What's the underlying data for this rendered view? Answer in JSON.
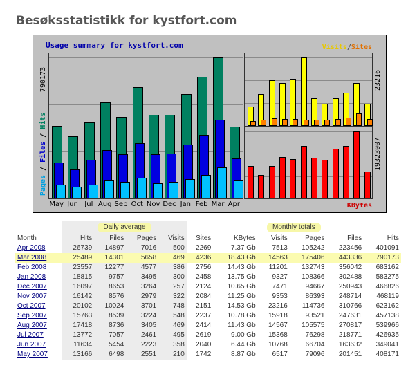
{
  "page": {
    "title": "Besøksstatistikk for kystfort.com"
  },
  "chart": {
    "title": "Usage summary for kystfort.com",
    "legend_visits": "Visits",
    "legend_separator": "/",
    "legend_sites": "Sites",
    "legend_kbytes": "KBytes",
    "left_max_label": "790173",
    "left_axis_labels": {
      "pages": "Pages",
      "files": "Files",
      "hits": "Hits",
      "sep": " / "
    },
    "right_top_max_label": "23216",
    "right_bottom_max_label": "19323007",
    "colors": {
      "hits": "#008060",
      "files": "#0000e0",
      "pages": "#00c0ff",
      "visits": "#ffff00",
      "sites": "#ff8000",
      "kbytes": "#ff0000"
    }
  },
  "chart_data": {
    "type": "bar",
    "categories": [
      "May",
      "Jun",
      "Jul",
      "Aug",
      "Sep",
      "Oct",
      "Nov",
      "Dec",
      "Jan",
      "Feb",
      "Mar",
      "Apr"
    ],
    "series": [
      {
        "name": "Hits",
        "values": [
          408171,
          349041,
          426935,
          539966,
          457138,
          623162,
          468119,
          466826,
          583275,
          683162,
          790173,
          401091
        ]
      },
      {
        "name": "Files",
        "values": [
          201451,
          163632,
          218771,
          270817,
          247631,
          310766,
          248714,
          250943,
          302488,
          356042,
          443336,
          223456
        ]
      },
      {
        "name": "Pages",
        "values": [
          79096,
          66704,
          76298,
          105575,
          93521,
          114736,
          86393,
          94667,
          108366,
          132743,
          175406,
          105242
        ]
      },
      {
        "name": "Visits",
        "values": [
          6517,
          10768,
          15368,
          14567,
          15918,
          23216,
          9353,
          7471,
          9327,
          11201,
          14563,
          7513
        ]
      },
      {
        "name": "Sites",
        "values": [
          1742,
          2040,
          2619,
          2414,
          2237,
          2151,
          2084,
          2124,
          2458,
          2756,
          4236,
          2269
        ]
      },
      {
        "name": "KBytes",
        "values": [
          9300870,
          6752829,
          9437184,
          11985223,
          11303649,
          15236382,
          11796480,
          11168481,
          14417920,
          15131000,
          19323007,
          7727474
        ]
      }
    ]
  },
  "table": {
    "group_daily": "Daily average",
    "group_monthly": "Monthly totals",
    "headers": [
      "Month",
      "Hits",
      "Files",
      "Pages",
      "Visits",
      "Sites",
      "KBytes",
      "Visits",
      "Pages",
      "Files",
      "Hits"
    ],
    "rows": [
      [
        "Apr 2008",
        "26739",
        "14897",
        "7016",
        "500",
        "2269",
        "7.37 Gb",
        "7513",
        "105242",
        "223456",
        "401091"
      ],
      [
        "Mar 2008",
        "25489",
        "14301",
        "5658",
        "469",
        "4236",
        "18.43 Gb",
        "14563",
        "175406",
        "443336",
        "790173"
      ],
      [
        "Feb 2008",
        "23557",
        "12277",
        "4577",
        "386",
        "2756",
        "14.43 Gb",
        "11201",
        "132743",
        "356042",
        "683162"
      ],
      [
        "Jan 2008",
        "18815",
        "9757",
        "3495",
        "300",
        "2458",
        "13.75 Gb",
        "9327",
        "108366",
        "302488",
        "583275"
      ],
      [
        "Dec 2007",
        "16097",
        "8653",
        "3264",
        "257",
        "2124",
        "10.65 Gb",
        "7471",
        "94667",
        "250943",
        "466826"
      ],
      [
        "Nov 2007",
        "16142",
        "8576",
        "2979",
        "322",
        "2084",
        "11.25 Gb",
        "9353",
        "86393",
        "248714",
        "468119"
      ],
      [
        "Oct 2007",
        "20102",
        "10024",
        "3701",
        "748",
        "2151",
        "14.53 Gb",
        "23216",
        "114736",
        "310766",
        "623162"
      ],
      [
        "Sep 2007",
        "15763",
        "8539",
        "3224",
        "548",
        "2237",
        "10.78 Gb",
        "15918",
        "93521",
        "247631",
        "457138"
      ],
      [
        "Aug 2007",
        "17418",
        "8736",
        "3405",
        "469",
        "2414",
        "11.43 Gb",
        "14567",
        "105575",
        "270817",
        "539966"
      ],
      [
        "Jul 2007",
        "13772",
        "7057",
        "2461",
        "495",
        "2619",
        "9.00 Gb",
        "15368",
        "76298",
        "218771",
        "426935"
      ],
      [
        "Jun 2007",
        "11634",
        "5454",
        "2223",
        "358",
        "2040",
        "6.44 Gb",
        "10768",
        "66704",
        "163632",
        "349041"
      ],
      [
        "May 2007",
        "13166",
        "6498",
        "2551",
        "210",
        "1742",
        "8.87 Gb",
        "6517",
        "79096",
        "201451",
        "408171"
      ]
    ]
  }
}
